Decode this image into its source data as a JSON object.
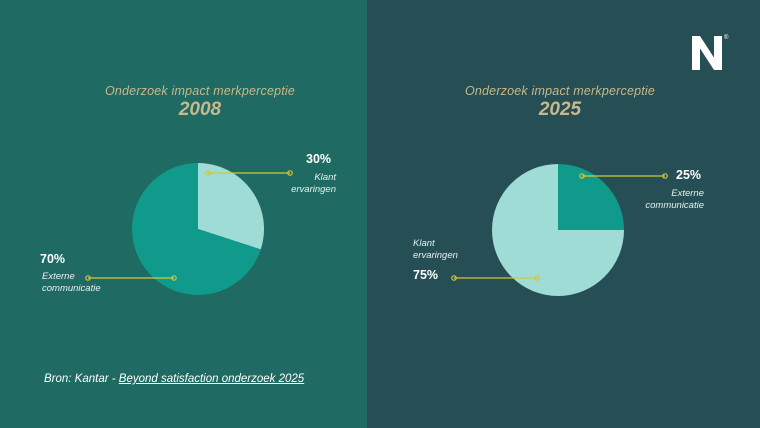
{
  "source": {
    "prefix": "Bron: Kantar - ",
    "link_text": "Beyond satisfaction onderzoek 2025"
  },
  "logo": {
    "letter": "N",
    "mark": "®"
  },
  "colors": {
    "panel_left": "#1f6a63",
    "panel_right": "#254e55",
    "slice_dark": "#0f9a8c",
    "slice_light": "#9fdcd6",
    "gold": "#c9b98a",
    "leader": "#d3c63a"
  },
  "chart_data": [
    {
      "type": "pie",
      "title": "Onderzoek impact merkperceptie",
      "subtitle": "2008",
      "slices": [
        {
          "label": "Klant ervaringen",
          "value": 30,
          "display": "30%",
          "label_lines": [
            "Klant",
            "ervaringen"
          ]
        },
        {
          "label": "Externe communicatie",
          "value": 70,
          "display": "70%",
          "label_lines": [
            "Externe",
            "communicatie"
          ]
        }
      ]
    },
    {
      "type": "pie",
      "title": "Onderzoek impact merkperceptie",
      "subtitle": "2025",
      "slices": [
        {
          "label": "Externe communicatie",
          "value": 25,
          "display": "25%",
          "label_lines": [
            "Externe",
            "communicatie"
          ]
        },
        {
          "label": "Klant ervaringen",
          "value": 75,
          "display": "75%",
          "label_lines": [
            "Klant",
            "ervaringen"
          ]
        }
      ]
    }
  ]
}
